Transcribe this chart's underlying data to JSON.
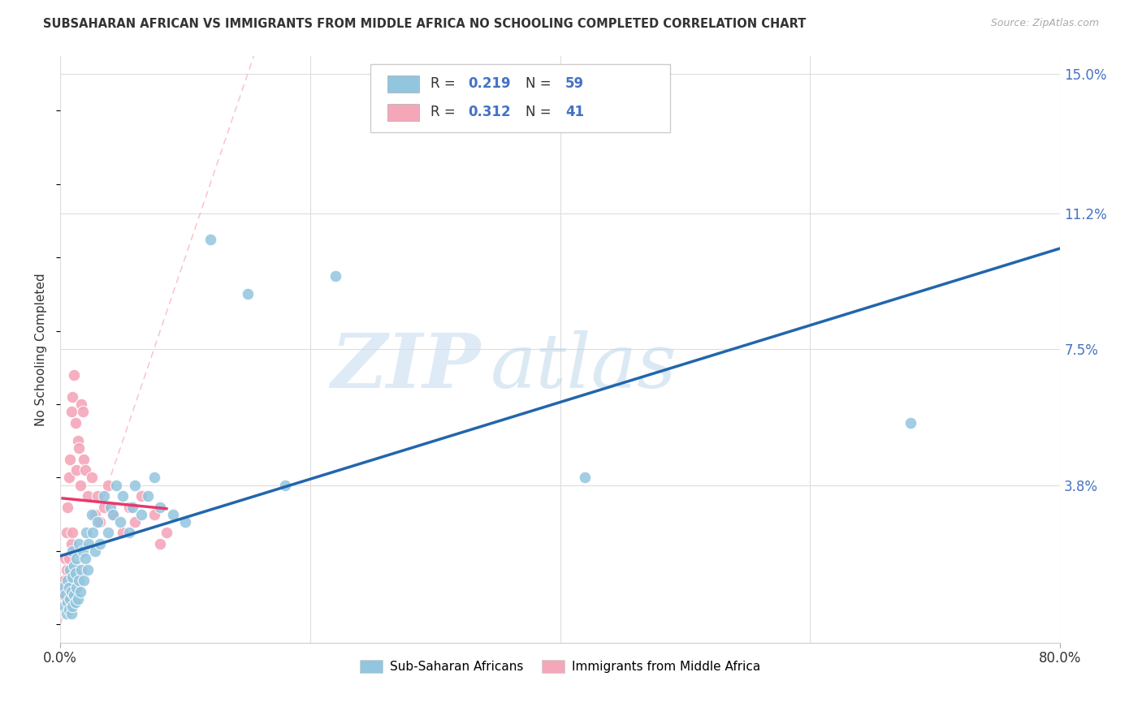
{
  "title": "SUBSAHARAN AFRICAN VS IMMIGRANTS FROM MIDDLE AFRICA NO SCHOOLING COMPLETED CORRELATION CHART",
  "source": "Source: ZipAtlas.com",
  "ylabel": "No Schooling Completed",
  "yticks": [
    0.0,
    0.038,
    0.075,
    0.112,
    0.15
  ],
  "ytick_labels": [
    "",
    "3.8%",
    "7.5%",
    "11.2%",
    "15.0%"
  ],
  "xlim": [
    0.0,
    0.8
  ],
  "ylim": [
    -0.005,
    0.155
  ],
  "blue_R": "0.219",
  "blue_N": "59",
  "pink_R": "0.312",
  "pink_N": "41",
  "blue_color": "#92c5de",
  "pink_color": "#f4a7b9",
  "blue_line_color": "#2166ac",
  "pink_line_color": "#e8386d",
  "diag_line_color": "#f4b8c8",
  "watermark_zip": "ZIP",
  "watermark_atlas": "atlas",
  "legend_label_blue": "Sub-Saharan Africans",
  "legend_label_pink": "Immigrants from Middle Africa",
  "blue_scatter_x": [
    0.002,
    0.003,
    0.004,
    0.005,
    0.006,
    0.006,
    0.007,
    0.007,
    0.008,
    0.008,
    0.009,
    0.009,
    0.01,
    0.01,
    0.01,
    0.011,
    0.011,
    0.012,
    0.012,
    0.013,
    0.013,
    0.014,
    0.015,
    0.015,
    0.016,
    0.017,
    0.018,
    0.019,
    0.02,
    0.021,
    0.022,
    0.023,
    0.025,
    0.026,
    0.028,
    0.03,
    0.032,
    0.035,
    0.038,
    0.04,
    0.042,
    0.045,
    0.048,
    0.05,
    0.055,
    0.058,
    0.06,
    0.065,
    0.07,
    0.075,
    0.08,
    0.09,
    0.1,
    0.12,
    0.15,
    0.18,
    0.22,
    0.42,
    0.68
  ],
  "blue_scatter_y": [
    0.01,
    0.005,
    0.008,
    0.003,
    0.006,
    0.012,
    0.004,
    0.01,
    0.007,
    0.015,
    0.003,
    0.009,
    0.005,
    0.013,
    0.02,
    0.008,
    0.016,
    0.006,
    0.014,
    0.01,
    0.018,
    0.007,
    0.012,
    0.022,
    0.009,
    0.015,
    0.02,
    0.012,
    0.018,
    0.025,
    0.015,
    0.022,
    0.03,
    0.025,
    0.02,
    0.028,
    0.022,
    0.035,
    0.025,
    0.032,
    0.03,
    0.038,
    0.028,
    0.035,
    0.025,
    0.032,
    0.038,
    0.03,
    0.035,
    0.04,
    0.032,
    0.03,
    0.028,
    0.105,
    0.09,
    0.038,
    0.095,
    0.04,
    0.055
  ],
  "pink_scatter_x": [
    0.002,
    0.003,
    0.004,
    0.004,
    0.005,
    0.005,
    0.006,
    0.006,
    0.007,
    0.007,
    0.008,
    0.008,
    0.009,
    0.009,
    0.01,
    0.01,
    0.011,
    0.012,
    0.013,
    0.014,
    0.015,
    0.016,
    0.017,
    0.018,
    0.019,
    0.02,
    0.022,
    0.025,
    0.028,
    0.03,
    0.032,
    0.035,
    0.038,
    0.042,
    0.05,
    0.055,
    0.06,
    0.065,
    0.075,
    0.08,
    0.085
  ],
  "pink_scatter_y": [
    0.008,
    0.012,
    0.01,
    0.018,
    0.015,
    0.025,
    0.01,
    0.032,
    0.018,
    0.04,
    0.008,
    0.045,
    0.022,
    0.058,
    0.025,
    0.062,
    0.068,
    0.055,
    0.042,
    0.05,
    0.048,
    0.038,
    0.06,
    0.058,
    0.045,
    0.042,
    0.035,
    0.04,
    0.03,
    0.035,
    0.028,
    0.032,
    0.038,
    0.03,
    0.025,
    0.032,
    0.028,
    0.035,
    0.03,
    0.022,
    0.025
  ]
}
